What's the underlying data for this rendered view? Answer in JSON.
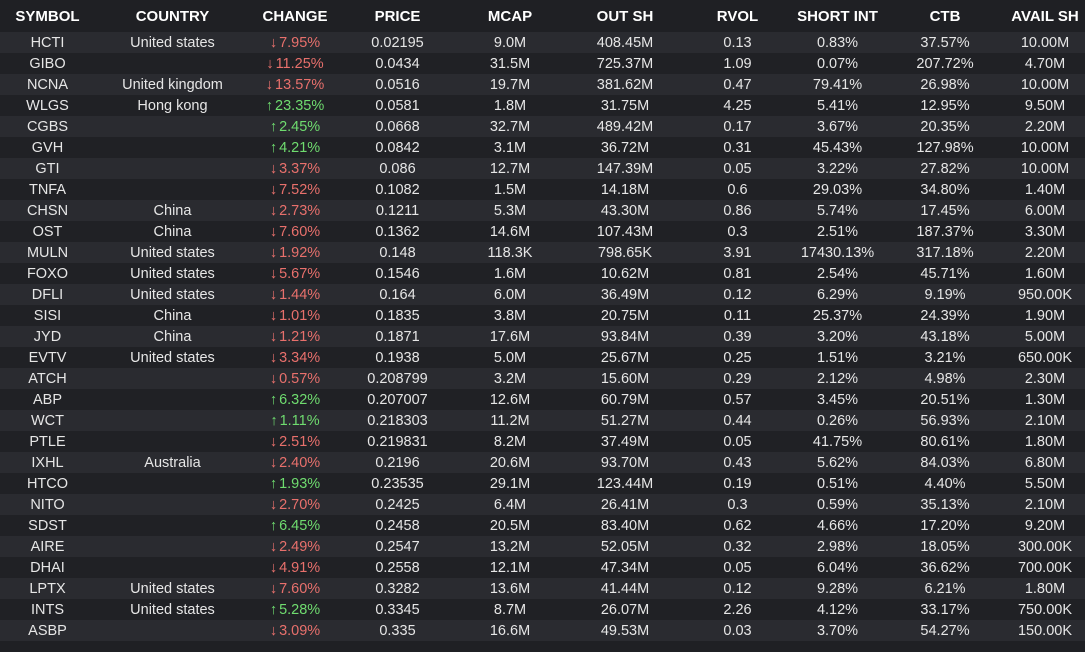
{
  "colors": {
    "up": "#6fdc6f",
    "down": "#e8706c",
    "background": "#1f2024"
  },
  "table": {
    "headers": [
      "SYMBOL",
      "COUNTRY",
      "CHANGE",
      "PRICE",
      "MCAP",
      "OUT SH",
      "RVOL",
      "SHORT INT",
      "CTB",
      "AVAIL SH"
    ],
    "rows": [
      {
        "symbol": "HCTI",
        "country": "United states",
        "dir": "down",
        "change": "7.95%",
        "price": "0.02195",
        "mcap": "9.0M",
        "out_sh": "408.45M",
        "rvol": "0.13",
        "short_int": "0.83%",
        "ctb": "37.57%",
        "avail_sh": "10.00M"
      },
      {
        "symbol": "GIBO",
        "country": "",
        "dir": "down",
        "change": "11.25%",
        "price": "0.0434",
        "mcap": "31.5M",
        "out_sh": "725.37M",
        "rvol": "1.09",
        "short_int": "0.07%",
        "ctb": "207.72%",
        "avail_sh": "4.70M"
      },
      {
        "symbol": "NCNA",
        "country": "United kingdom",
        "dir": "down",
        "change": "13.57%",
        "price": "0.0516",
        "mcap": "19.7M",
        "out_sh": "381.62M",
        "rvol": "0.47",
        "short_int": "79.41%",
        "ctb": "26.98%",
        "avail_sh": "10.00M"
      },
      {
        "symbol": "WLGS",
        "country": "Hong kong",
        "dir": "up",
        "change": "23.35%",
        "price": "0.0581",
        "mcap": "1.8M",
        "out_sh": "31.75M",
        "rvol": "4.25",
        "short_int": "5.41%",
        "ctb": "12.95%",
        "avail_sh": "9.50M"
      },
      {
        "symbol": "CGBS",
        "country": "",
        "dir": "up",
        "change": "2.45%",
        "price": "0.0668",
        "mcap": "32.7M",
        "out_sh": "489.42M",
        "rvol": "0.17",
        "short_int": "3.67%",
        "ctb": "20.35%",
        "avail_sh": "2.20M"
      },
      {
        "symbol": "GVH",
        "country": "",
        "dir": "up",
        "change": "4.21%",
        "price": "0.0842",
        "mcap": "3.1M",
        "out_sh": "36.72M",
        "rvol": "0.31",
        "short_int": "45.43%",
        "ctb": "127.98%",
        "avail_sh": "10.00M"
      },
      {
        "symbol": "GTI",
        "country": "",
        "dir": "down",
        "change": "3.37%",
        "price": "0.086",
        "mcap": "12.7M",
        "out_sh": "147.39M",
        "rvol": "0.05",
        "short_int": "3.22%",
        "ctb": "27.82%",
        "avail_sh": "10.00M"
      },
      {
        "symbol": "TNFA",
        "country": "",
        "dir": "down",
        "change": "7.52%",
        "price": "0.1082",
        "mcap": "1.5M",
        "out_sh": "14.18M",
        "rvol": "0.6",
        "short_int": "29.03%",
        "ctb": "34.80%",
        "avail_sh": "1.40M"
      },
      {
        "symbol": "CHSN",
        "country": "China",
        "dir": "down",
        "change": "2.73%",
        "price": "0.1211",
        "mcap": "5.3M",
        "out_sh": "43.30M",
        "rvol": "0.86",
        "short_int": "5.74%",
        "ctb": "17.45%",
        "avail_sh": "6.00M"
      },
      {
        "symbol": "OST",
        "country": "China",
        "dir": "down",
        "change": "7.60%",
        "price": "0.1362",
        "mcap": "14.6M",
        "out_sh": "107.43M",
        "rvol": "0.3",
        "short_int": "2.51%",
        "ctb": "187.37%",
        "avail_sh": "3.30M"
      },
      {
        "symbol": "MULN",
        "country": "United states",
        "dir": "down",
        "change": "1.92%",
        "price": "0.148",
        "mcap": "118.3K",
        "out_sh": "798.65K",
        "rvol": "3.91",
        "short_int": "17430.13%",
        "ctb": "317.18%",
        "avail_sh": "2.20M"
      },
      {
        "symbol": "FOXO",
        "country": "United states",
        "dir": "down",
        "change": "5.67%",
        "price": "0.1546",
        "mcap": "1.6M",
        "out_sh": "10.62M",
        "rvol": "0.81",
        "short_int": "2.54%",
        "ctb": "45.71%",
        "avail_sh": "1.60M"
      },
      {
        "symbol": "DFLI",
        "country": "United states",
        "dir": "down",
        "change": "1.44%",
        "price": "0.164",
        "mcap": "6.0M",
        "out_sh": "36.49M",
        "rvol": "0.12",
        "short_int": "6.29%",
        "ctb": "9.19%",
        "avail_sh": "950.00K"
      },
      {
        "symbol": "SISI",
        "country": "China",
        "dir": "down",
        "change": "1.01%",
        "price": "0.1835",
        "mcap": "3.8M",
        "out_sh": "20.75M",
        "rvol": "0.11",
        "short_int": "25.37%",
        "ctb": "24.39%",
        "avail_sh": "1.90M"
      },
      {
        "symbol": "JYD",
        "country": "China",
        "dir": "down",
        "change": "1.21%",
        "price": "0.1871",
        "mcap": "17.6M",
        "out_sh": "93.84M",
        "rvol": "0.39",
        "short_int": "3.20%",
        "ctb": "43.18%",
        "avail_sh": "5.00M"
      },
      {
        "symbol": "EVTV",
        "country": "United states",
        "dir": "down",
        "change": "3.34%",
        "price": "0.1938",
        "mcap": "5.0M",
        "out_sh": "25.67M",
        "rvol": "0.25",
        "short_int": "1.51%",
        "ctb": "3.21%",
        "avail_sh": "650.00K"
      },
      {
        "symbol": "ATCH",
        "country": "",
        "dir": "down",
        "change": "0.57%",
        "price": "0.208799",
        "mcap": "3.2M",
        "out_sh": "15.60M",
        "rvol": "0.29",
        "short_int": "2.12%",
        "ctb": "4.98%",
        "avail_sh": "2.30M"
      },
      {
        "symbol": "ABP",
        "country": "",
        "dir": "up",
        "change": "6.32%",
        "price": "0.207007",
        "mcap": "12.6M",
        "out_sh": "60.79M",
        "rvol": "0.57",
        "short_int": "3.45%",
        "ctb": "20.51%",
        "avail_sh": "1.30M"
      },
      {
        "symbol": "WCT",
        "country": "",
        "dir": "up",
        "change": "1.11%",
        "price": "0.218303",
        "mcap": "11.2M",
        "out_sh": "51.27M",
        "rvol": "0.44",
        "short_int": "0.26%",
        "ctb": "56.93%",
        "avail_sh": "2.10M"
      },
      {
        "symbol": "PTLE",
        "country": "",
        "dir": "down",
        "change": "2.51%",
        "price": "0.219831",
        "mcap": "8.2M",
        "out_sh": "37.49M",
        "rvol": "0.05",
        "short_int": "41.75%",
        "ctb": "80.61%",
        "avail_sh": "1.80M"
      },
      {
        "symbol": "IXHL",
        "country": "Australia",
        "dir": "down",
        "change": "2.40%",
        "price": "0.2196",
        "mcap": "20.6M",
        "out_sh": "93.70M",
        "rvol": "0.43",
        "short_int": "5.62%",
        "ctb": "84.03%",
        "avail_sh": "6.80M"
      },
      {
        "symbol": "HTCO",
        "country": "",
        "dir": "up",
        "change": "1.93%",
        "price": "0.23535",
        "mcap": "29.1M",
        "out_sh": "123.44M",
        "rvol": "0.19",
        "short_int": "0.51%",
        "ctb": "4.40%",
        "avail_sh": "5.50M"
      },
      {
        "symbol": "NITO",
        "country": "",
        "dir": "down",
        "change": "2.70%",
        "price": "0.2425",
        "mcap": "6.4M",
        "out_sh": "26.41M",
        "rvol": "0.3",
        "short_int": "0.59%",
        "ctb": "35.13%",
        "avail_sh": "2.10M"
      },
      {
        "symbol": "SDST",
        "country": "",
        "dir": "up",
        "change": "6.45%",
        "price": "0.2458",
        "mcap": "20.5M",
        "out_sh": "83.40M",
        "rvol": "0.62",
        "short_int": "4.66%",
        "ctb": "17.20%",
        "avail_sh": "9.20M"
      },
      {
        "symbol": "AIRE",
        "country": "",
        "dir": "down",
        "change": "2.49%",
        "price": "0.2547",
        "mcap": "13.2M",
        "out_sh": "52.05M",
        "rvol": "0.32",
        "short_int": "2.98%",
        "ctb": "18.05%",
        "avail_sh": "300.00K"
      },
      {
        "symbol": "DHAI",
        "country": "",
        "dir": "down",
        "change": "4.91%",
        "price": "0.2558",
        "mcap": "12.1M",
        "out_sh": "47.34M",
        "rvol": "0.05",
        "short_int": "6.04%",
        "ctb": "36.62%",
        "avail_sh": "700.00K"
      },
      {
        "symbol": "LPTX",
        "country": "United states",
        "dir": "down",
        "change": "7.60%",
        "price": "0.3282",
        "mcap": "13.6M",
        "out_sh": "41.44M",
        "rvol": "0.12",
        "short_int": "9.28%",
        "ctb": "6.21%",
        "avail_sh": "1.80M"
      },
      {
        "symbol": "INTS",
        "country": "United states",
        "dir": "up",
        "change": "5.28%",
        "price": "0.3345",
        "mcap": "8.7M",
        "out_sh": "26.07M",
        "rvol": "2.26",
        "short_int": "4.12%",
        "ctb": "33.17%",
        "avail_sh": "750.00K"
      },
      {
        "symbol": "ASBP",
        "country": "",
        "dir": "down",
        "change": "3.09%",
        "price": "0.335",
        "mcap": "16.6M",
        "out_sh": "49.53M",
        "rvol": "0.03",
        "short_int": "3.70%",
        "ctb": "54.27%",
        "avail_sh": "150.00K"
      }
    ]
  }
}
